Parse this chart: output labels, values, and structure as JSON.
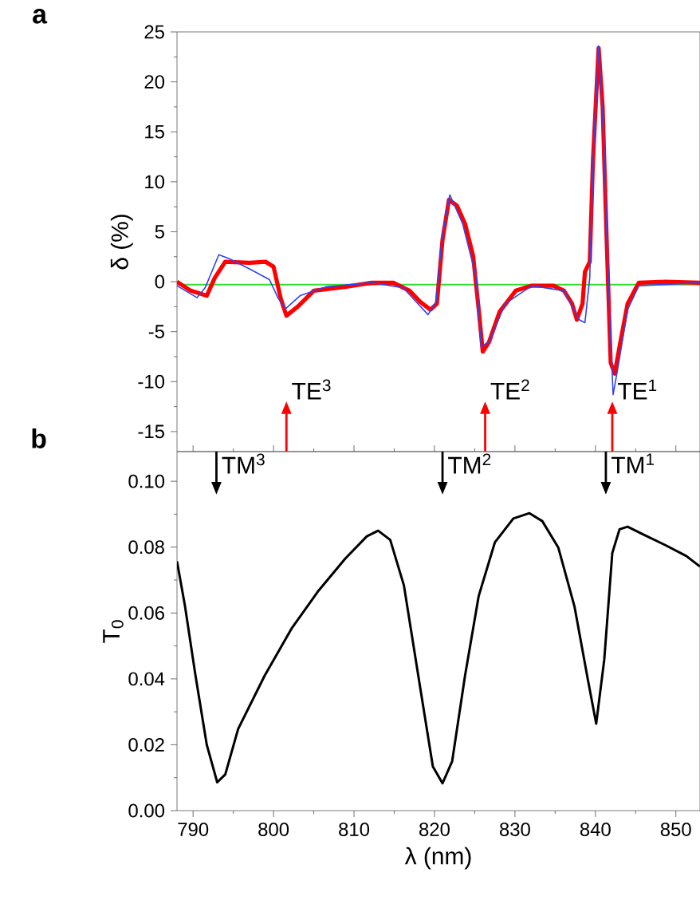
{
  "chart_data": [
    {
      "type": "line",
      "title": "a",
      "ylabel": "δ (%)",
      "xlim": [
        788,
        853
      ],
      "ylim": [
        -17,
        25
      ],
      "yticks": [
        -15,
        -10,
        -5,
        0,
        5,
        10,
        15,
        20,
        25
      ],
      "tick_labels": "y",
      "series": [
        {
          "color": "#33dd33",
          "x": [
            788,
            800,
            815,
            830,
            845,
            853
          ],
          "values": [
            -0.3,
            -0.3,
            -0.3,
            -0.3,
            -0.3,
            -0.3
          ]
        },
        {
          "color": "#ff0000",
          "x": [
            788,
            789.7,
            791.7,
            792.7,
            794,
            797,
            799,
            800,
            800.9,
            801.6,
            803,
            805,
            809,
            812.2,
            814.9,
            816.9,
            818.2,
            819.5,
            820.3,
            821,
            821.8,
            822.8,
            823.8,
            824.8,
            825.5,
            826,
            826.8,
            828.1,
            830.1,
            832.1,
            834.8,
            836.1,
            837.1,
            837.7,
            838.4,
            838.7,
            839.3,
            839.7,
            840.4,
            840.9,
            841.4,
            841.9,
            842.4,
            843,
            844,
            845.4,
            848.7,
            853
          ],
          "values": [
            0,
            -0.9,
            -1.4,
            0.4,
            2.0,
            1.9,
            2.0,
            1.5,
            -1.7,
            -3.4,
            -2.5,
            -0.9,
            -0.5,
            -0.1,
            -0.1,
            -0.9,
            -2.0,
            -2.8,
            -2.2,
            4.2,
            8.2,
            7.6,
            5.8,
            2.6,
            -2.8,
            -7.0,
            -6.0,
            -3.0,
            -0.9,
            -0.4,
            -0.4,
            -0.9,
            -2.2,
            -3.8,
            -2.2,
            1.0,
            2.0,
            12.2,
            23.4,
            17.5,
            4.2,
            -8.1,
            -9.2,
            -6.5,
            -2.2,
            -0.1,
            0,
            -0.1
          ]
        },
        {
          "color": "#3344ee",
          "x": [
            788,
            790.5,
            791.5,
            793.2,
            794.5,
            797.2,
            799.5,
            800.6,
            801.5,
            803.3,
            806.6,
            812.2,
            816.1,
            819.2,
            820.2,
            820.9,
            821.9,
            823.5,
            825.2,
            825.8,
            826.8,
            828.8,
            832.1,
            836.1,
            838,
            838.7,
            839.3,
            839.7,
            840.4,
            841,
            841.7,
            842.2,
            842.8,
            844,
            845.4,
            853
          ],
          "values": [
            -0.4,
            -1.6,
            -0.6,
            2.7,
            2.3,
            1.2,
            0.2,
            -1.7,
            -2.7,
            -1.4,
            -0.5,
            -0.1,
            -0.6,
            -3.3,
            -2.0,
            4.2,
            8.7,
            5.8,
            0.4,
            -6.5,
            -6.0,
            -2.2,
            -0.4,
            -0.9,
            -3.8,
            -4.1,
            0.4,
            12.2,
            23.6,
            14.8,
            -1.7,
            -11.3,
            -8.6,
            -2.8,
            -0.4,
            -0.1
          ]
        }
      ],
      "ref_lines": [
        {
          "axis": "x",
          "value": 801.6,
          "label": "TE$^{3}$",
          "color": "#ff0000"
        },
        {
          "axis": "x",
          "value": 826.3,
          "label": "TE$^{2}$",
          "color": "#ff0000"
        },
        {
          "axis": "x",
          "value": 842.1,
          "label": "TE$^{1}$",
          "color": "#ff0000"
        }
      ]
    },
    {
      "type": "line",
      "title": "b",
      "xlabel": "λ (nm)",
      "ylabel": "T$_{0}$",
      "xlim": [
        788,
        853
      ],
      "ylim": [
        0,
        0.109
      ],
      "xticks": [
        790,
        800,
        810,
        820,
        830,
        840,
        850
      ],
      "yticks": [
        {
          "value": 0,
          "label": "0.00"
        },
        {
          "value": 0.02,
          "label": "0.02"
        },
        {
          "value": 0.04,
          "label": "0.04"
        },
        {
          "value": 0.06,
          "label": "0.06"
        },
        {
          "value": 0.08,
          "label": "0.08"
        },
        {
          "value": 0.1,
          "label": "0.10"
        }
      ],
      "series": [
        {
          "color": "#000000",
          "x": [
            788,
            789,
            790.3,
            791.7,
            793,
            794,
            795.6,
            798.9,
            802.3,
            805.6,
            808.9,
            811.6,
            813,
            814.5,
            816.2,
            818.2,
            819.8,
            821,
            822.2,
            823.8,
            825.5,
            827.5,
            829.8,
            831.8,
            833.4,
            835.4,
            837.4,
            839.1,
            840.1,
            841.1,
            842.1,
            843,
            844,
            846,
            848.7,
            851.3,
            853
          ],
          "values": [
            0.0757,
            0.062,
            0.041,
            0.02,
            0.0086,
            0.011,
            0.0248,
            0.041,
            0.0555,
            0.0668,
            0.0765,
            0.0833,
            0.085,
            0.0822,
            0.0684,
            0.0377,
            0.0134,
            0.0083,
            0.015,
            0.041,
            0.0652,
            0.0814,
            0.0887,
            0.0903,
            0.0879,
            0.0798,
            0.062,
            0.0393,
            0.0264,
            0.0458,
            0.0782,
            0.0854,
            0.0862,
            0.0838,
            0.0806,
            0.0773,
            0.0741
          ]
        }
      ],
      "ref_lines": [
        {
          "axis": "x",
          "value": 792.9,
          "label": "TM$^{3}$",
          "color": "#000000"
        },
        {
          "axis": "x",
          "value": 821,
          "label": "TM$^{2}$",
          "color": "#000000"
        },
        {
          "axis": "x",
          "value": 841.3,
          "label": "TM$^{1}$",
          "color": "#000000"
        }
      ]
    }
  ]
}
